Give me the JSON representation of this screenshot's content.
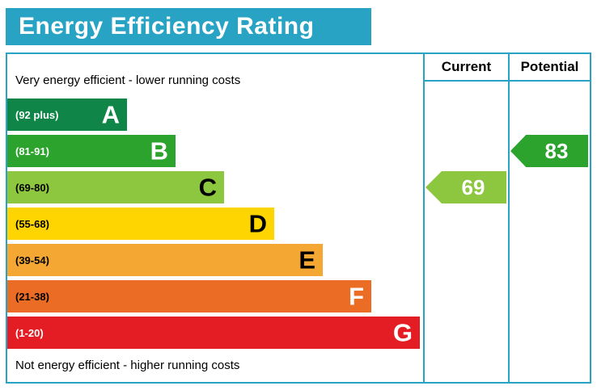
{
  "title": "Energy Efficiency Rating",
  "accent_color": "#28a3c4",
  "columns": {
    "current": "Current",
    "potential": "Potential"
  },
  "top_label": "Very energy efficient - lower running costs",
  "bottom_label": "Not energy efficient - higher running costs",
  "bands": [
    {
      "letter": "A",
      "range": "(92 plus)",
      "color": "#0f8647",
      "range_color": "#ffffff",
      "letter_color": "#ffffff"
    },
    {
      "letter": "B",
      "range": "(81-91)",
      "color": "#2ba32d",
      "range_color": "#ffffff",
      "letter_color": "#ffffff"
    },
    {
      "letter": "C",
      "range": "(69-80)",
      "color": "#8dc63f",
      "range_color": "#000000",
      "letter_color": "#000000"
    },
    {
      "letter": "D",
      "range": "(55-68)",
      "color": "#fed500",
      "range_color": "#000000",
      "letter_color": "#000000"
    },
    {
      "letter": "E",
      "range": "(39-54)",
      "color": "#f4a733",
      "range_color": "#000000",
      "letter_color": "#000000"
    },
    {
      "letter": "F",
      "range": "(21-38)",
      "color": "#ea6c25",
      "range_color": "#000000",
      "letter_color": "#ffffff"
    },
    {
      "letter": "G",
      "range": "(1-20)",
      "color": "#e31d23",
      "range_color": "#ffffff",
      "letter_color": "#ffffff"
    }
  ],
  "current": {
    "value": "69",
    "color": "#8dc63f"
  },
  "potential": {
    "value": "83",
    "color": "#2ba32d"
  },
  "chart_data": {
    "type": "bar",
    "title": "Energy Efficiency Rating",
    "bands": [
      {
        "letter": "A",
        "range": "92 plus"
      },
      {
        "letter": "B",
        "range": "81-91"
      },
      {
        "letter": "C",
        "range": "69-80"
      },
      {
        "letter": "D",
        "range": "55-68"
      },
      {
        "letter": "E",
        "range": "39-54"
      },
      {
        "letter": "F",
        "range": "21-38"
      },
      {
        "letter": "G",
        "range": "1-20"
      }
    ],
    "current": {
      "value": 69,
      "band": "C"
    },
    "potential": {
      "value": 83,
      "band": "B"
    },
    "annotations": [
      "Very energy efficient - lower running costs",
      "Not energy efficient - higher running costs"
    ],
    "legend_position": "none",
    "grid": false
  }
}
